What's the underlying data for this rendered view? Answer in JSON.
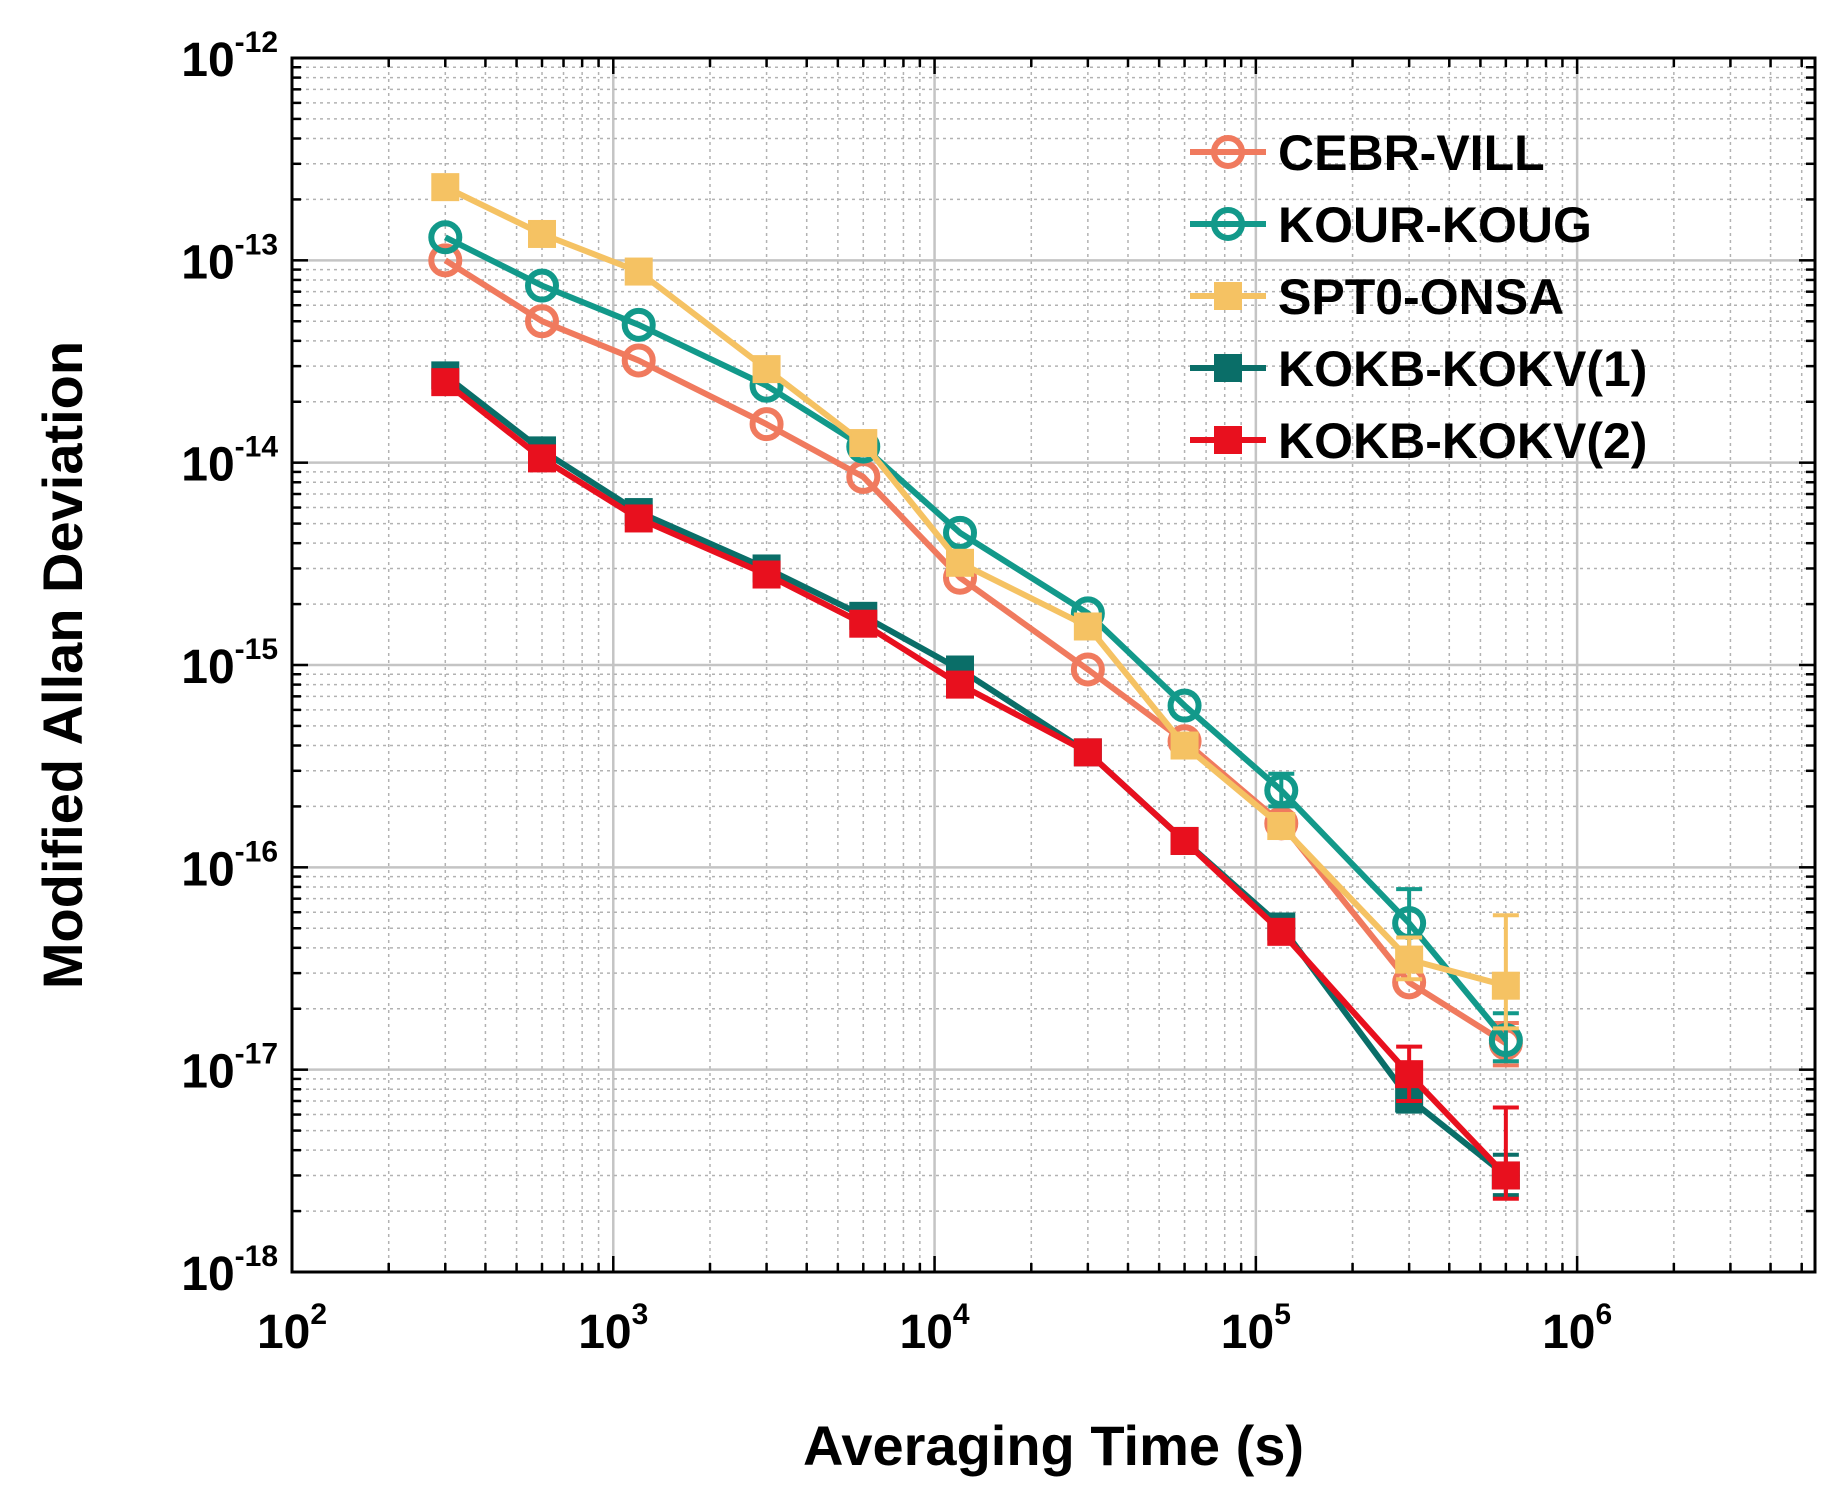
{
  "chart_data": {
    "type": "line",
    "title": "",
    "xlabel": "Averaging Time (s)",
    "ylabel": "Modified Allan Deviation",
    "xscale": "log",
    "yscale": "log",
    "xlim": [
      100,
      5500000
    ],
    "ylim": [
      1e-18,
      1e-12
    ],
    "grid": true,
    "legend_position": "top-right",
    "x_ticks": [
      {
        "base": "10",
        "exp": "2",
        "value": 100
      },
      {
        "base": "10",
        "exp": "3",
        "value": 1000
      },
      {
        "base": "10",
        "exp": "4",
        "value": 10000
      },
      {
        "base": "10",
        "exp": "5",
        "value": 100000
      },
      {
        "base": "10",
        "exp": "6",
        "value": 1000000
      }
    ],
    "y_ticks": [
      {
        "base": "10",
        "exp": "-12",
        "value": 1e-12
      },
      {
        "base": "10",
        "exp": "-13",
        "value": 1e-13
      },
      {
        "base": "10",
        "exp": "-14",
        "value": 1e-14
      },
      {
        "base": "10",
        "exp": "-15",
        "value": 1e-15
      },
      {
        "base": "10",
        "exp": "-16",
        "value": 1e-16
      },
      {
        "base": "10",
        "exp": "-17",
        "value": 1e-17
      },
      {
        "base": "10",
        "exp": "-18",
        "value": 1e-18
      }
    ],
    "series": [
      {
        "name": "CEBR-VILL",
        "color": "#F07A5E",
        "marker": "circle",
        "x": [
          300,
          600,
          1200,
          3000,
          6000,
          12000,
          30000,
          60000,
          120000,
          300000,
          600000
        ],
        "y": [
          1e-13,
          5e-14,
          3.2e-14,
          1.55e-14,
          8.5e-15,
          2.7e-15,
          9.5e-16,
          4.2e-16,
          1.65e-16,
          2.7e-17,
          1.35e-17
        ],
        "err_low": [
          null,
          null,
          null,
          null,
          null,
          null,
          null,
          null,
          null,
          null,
          1.05e-17
        ],
        "err_high": [
          null,
          null,
          null,
          null,
          null,
          null,
          null,
          null,
          null,
          null,
          1.7e-17
        ]
      },
      {
        "name": "KOUR-KOUG",
        "color": "#12998A",
        "marker": "circle",
        "x": [
          300,
          600,
          1200,
          3000,
          6000,
          12000,
          30000,
          60000,
          120000,
          300000,
          600000
        ],
        "y": [
          1.3e-13,
          7.5e-14,
          4.8e-14,
          2.4e-14,
          1.2e-14,
          4.5e-15,
          1.8e-15,
          6.3e-16,
          2.4e-16,
          5.3e-17,
          1.4e-17
        ],
        "err_low": [
          null,
          null,
          null,
          null,
          null,
          null,
          null,
          null,
          2e-16,
          3.8e-17,
          1.1e-17
        ],
        "err_high": [
          null,
          null,
          null,
          null,
          null,
          null,
          null,
          null,
          2.9e-16,
          7.8e-17,
          1.9e-17
        ]
      },
      {
        "name": "SPT0-ONSA",
        "color": "#F5C263",
        "marker": "square",
        "x": [
          300,
          600,
          1200,
          3000,
          6000,
          12000,
          30000,
          60000,
          120000,
          300000,
          600000
        ],
        "y": [
          2.3e-13,
          1.35e-13,
          8.8e-14,
          2.9e-14,
          1.25e-14,
          3.2e-15,
          1.55e-15,
          4e-16,
          1.6e-16,
          3.5e-17,
          2.6e-17
        ],
        "err_low": [
          null,
          null,
          null,
          null,
          null,
          null,
          null,
          null,
          null,
          2.8e-17,
          1.6e-17
        ],
        "err_high": [
          null,
          null,
          null,
          null,
          null,
          null,
          null,
          null,
          null,
          4.5e-17,
          5.8e-17
        ]
      },
      {
        "name": "KOKB-KOKV(1)",
        "color": "#0A6E68",
        "marker": "square",
        "x": [
          300,
          600,
          1200,
          3000,
          6000,
          12000,
          30000,
          60000,
          120000,
          300000,
          600000
        ],
        "y": [
          2.7e-14,
          1.15e-14,
          5.7e-15,
          3e-15,
          1.75e-15,
          9.5e-16,
          3.7e-16,
          1.35e-16,
          5.1e-17,
          7.2e-18,
          3e-18
        ],
        "err_low": [
          null,
          null,
          null,
          null,
          null,
          null,
          null,
          null,
          null,
          6.2e-18,
          2.4e-18
        ],
        "err_high": [
          null,
          null,
          null,
          null,
          null,
          null,
          null,
          null,
          null,
          8.5e-18,
          3.8e-18
        ]
      },
      {
        "name": "KOKB-KOKV(2)",
        "color": "#E8101E",
        "marker": "square",
        "x": [
          300,
          600,
          1200,
          3000,
          6000,
          12000,
          30000,
          60000,
          120000,
          300000,
          600000
        ],
        "y": [
          2.5e-14,
          1.05e-14,
          5.3e-15,
          2.8e-15,
          1.6e-15,
          8e-16,
          3.7e-16,
          1.35e-16,
          4.8e-17,
          9.5e-18,
          3e-18
        ],
        "err_low": [
          null,
          null,
          null,
          null,
          null,
          null,
          null,
          null,
          null,
          7e-18,
          2.3e-18
        ],
        "err_high": [
          null,
          null,
          null,
          null,
          null,
          null,
          null,
          null,
          null,
          1.3e-17,
          6.5e-18
        ]
      }
    ]
  }
}
